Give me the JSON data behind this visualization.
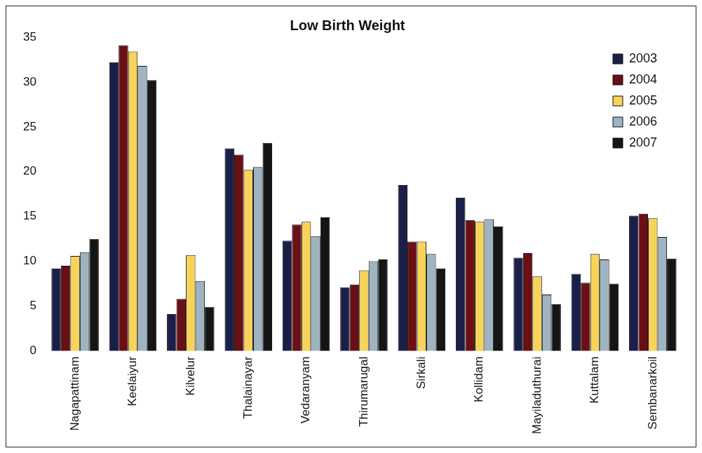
{
  "chart_data": {
    "type": "bar",
    "title": "Low Birth Weight",
    "categories": [
      "Nagapattinam",
      "Keelaiyur",
      "Kilvelur",
      "Thalainayar",
      "Vedaranyam",
      "Thirumarugal",
      "Sirkali",
      "Kollidam",
      "Mayiladuthurai",
      "Kuttalam",
      "Sembanarkoil"
    ],
    "series": [
      {
        "name": "2003",
        "color": "#1a1f4a",
        "values": [
          9.2,
          32.2,
          4.1,
          22.6,
          12.3,
          7.1,
          18.5,
          17.1,
          10.4,
          8.6,
          15.1
        ]
      },
      {
        "name": "2004",
        "color": "#6b0f14",
        "values": [
          9.5,
          34.1,
          5.8,
          21.9,
          14.1,
          7.4,
          12.2,
          14.6,
          10.9,
          7.6,
          15.3
        ]
      },
      {
        "name": "2005",
        "color": "#f7d35a",
        "values": [
          10.6,
          33.4,
          10.7,
          20.2,
          14.4,
          9.0,
          12.2,
          14.4,
          8.3,
          10.8,
          14.8
        ]
      },
      {
        "name": "2006",
        "color": "#9fb4c0",
        "values": [
          11.0,
          31.8,
          7.8,
          20.5,
          12.8,
          10.0,
          10.8,
          14.7,
          6.3,
          10.2,
          12.7
        ]
      },
      {
        "name": "2007",
        "color": "#151515",
        "values": [
          12.5,
          30.2,
          4.9,
          23.2,
          14.9,
          10.2,
          9.2,
          13.9,
          5.2,
          7.5,
          10.3
        ]
      }
    ],
    "ylim": [
      0,
      35
    ],
    "yticks": [
      0,
      5,
      10,
      15,
      20,
      25,
      30,
      35
    ],
    "legend": "top right"
  }
}
